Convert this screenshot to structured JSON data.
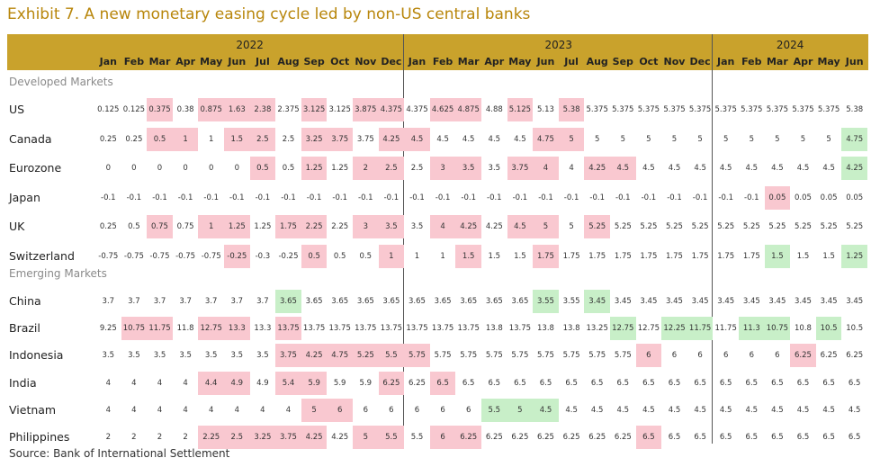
{
  "title": "Exhibit 7. A new monetary easing cycle led by non-US central banks",
  "table": {
    "years": [
      {
        "label": "2022",
        "months": [
          "Jan",
          "Feb",
          "Mar",
          "Apr",
          "May",
          "Jun",
          "Jul",
          "Aug",
          "Sep",
          "Oct",
          "Nov",
          "Dec"
        ]
      },
      {
        "label": "2023",
        "months": [
          "Jan",
          "Feb",
          "Mar",
          "Apr",
          "May",
          "Jun",
          "Jul",
          "Aug",
          "Sep",
          "Oct",
          "Nov",
          "Dec"
        ]
      },
      {
        "label": "2024",
        "months": [
          "Jan",
          "Feb",
          "Mar",
          "Apr",
          "May",
          "Jun"
        ]
      }
    ],
    "sections": [
      {
        "label": "Developed Markets",
        "rows": [
          {
            "name": "US",
            "values": [
              0.125,
              0.125,
              0.375,
              0.38,
              0.875,
              1.63,
              2.38,
              2.375,
              3.125,
              3.125,
              3.875,
              4.375,
              4.375,
              4.625,
              4.875,
              4.88,
              5.125,
              5.13,
              5.38,
              5.375,
              5.375,
              5.375,
              5.375,
              5.375,
              5.375,
              5.375,
              5.375,
              5.375,
              5.375,
              5.38
            ],
            "fills": [
              null,
              null,
              "#f9c8d0",
              null,
              "#f9c8d0",
              "#f9c8d0",
              "#f9c8d0",
              null,
              "#f9c8d0",
              null,
              "#f9c8d0",
              "#f9c8d0",
              null,
              "#f9c8d0",
              "#f9c8d0",
              null,
              "#f9c8d0",
              null,
              "#f9c8d0",
              null,
              null,
              null,
              null,
              null,
              null,
              null,
              null,
              null,
              null,
              null
            ]
          },
          {
            "name": "Canada",
            "values": [
              0.25,
              0.25,
              0.5,
              1,
              1,
              1.5,
              2.5,
              2.5,
              3.25,
              3.75,
              3.75,
              4.25,
              4.5,
              4.5,
              4.5,
              4.5,
              4.5,
              4.75,
              5,
              5,
              5,
              5,
              5,
              5,
              5,
              5,
              5,
              5,
              5,
              4.75
            ],
            "fills": [
              null,
              null,
              "#f9c8d0",
              "#f9c8d0",
              null,
              "#f9c8d0",
              "#f9c8d0",
              null,
              "#f9c8d0",
              "#f9c8d0",
              null,
              "#f9c8d0",
              "#f9c8d0",
              null,
              null,
              null,
              null,
              "#f9c8d0",
              "#f9c8d0",
              null,
              null,
              null,
              null,
              null,
              null,
              null,
              null,
              null,
              null,
              "#c8efc8"
            ]
          },
          {
            "name": "Eurozone",
            "values": [
              0,
              0,
              0,
              0,
              0,
              0,
              0.5,
              0.5,
              1.25,
              1.25,
              2,
              2.5,
              2.5,
              3,
              3.5,
              3.5,
              3.75,
              4,
              4,
              4.25,
              4.5,
              4.5,
              4.5,
              4.5,
              4.5,
              4.5,
              4.5,
              4.5,
              4.5,
              4.25
            ],
            "fills": [
              null,
              null,
              null,
              null,
              null,
              null,
              "#f9c8d0",
              null,
              "#f9c8d0",
              null,
              "#f9c8d0",
              "#f9c8d0",
              null,
              "#f9c8d0",
              "#f9c8d0",
              null,
              "#f9c8d0",
              "#f9c8d0",
              null,
              "#f9c8d0",
              "#f9c8d0",
              null,
              null,
              null,
              null,
              null,
              null,
              null,
              null,
              "#c8efc8"
            ]
          },
          {
            "name": "Japan",
            "values": [
              -0.1,
              -0.1,
              -0.1,
              -0.1,
              -0.1,
              -0.1,
              -0.1,
              -0.1,
              -0.1,
              -0.1,
              -0.1,
              -0.1,
              -0.1,
              -0.1,
              -0.1,
              -0.1,
              -0.1,
              -0.1,
              -0.1,
              -0.1,
              -0.1,
              -0.1,
              -0.1,
              -0.1,
              -0.1,
              -0.1,
              0.05,
              0.05,
              0.05,
              0.05
            ],
            "fills": [
              null,
              null,
              null,
              null,
              null,
              null,
              null,
              null,
              null,
              null,
              null,
              null,
              null,
              null,
              null,
              null,
              null,
              null,
              null,
              null,
              null,
              null,
              null,
              null,
              null,
              null,
              "#f9c8d0",
              null,
              null,
              null
            ]
          },
          {
            "name": "UK",
            "values": [
              0.25,
              0.5,
              0.75,
              0.75,
              1,
              1.25,
              1.25,
              1.75,
              2.25,
              2.25,
              3,
              3.5,
              3.5,
              4,
              4.25,
              4.25,
              4.5,
              5,
              5,
              5.25,
              5.25,
              5.25,
              5.25,
              5.25,
              5.25,
              5.25,
              5.25,
              5.25,
              5.25,
              5.25
            ],
            "fills": [
              null,
              null,
              "#f9c8d0",
              null,
              "#f9c8d0",
              "#f9c8d0",
              null,
              "#f9c8d0",
              "#f9c8d0",
              null,
              "#f9c8d0",
              "#f9c8d0",
              null,
              "#f9c8d0",
              "#f9c8d0",
              null,
              "#f9c8d0",
              "#f9c8d0",
              null,
              "#f9c8d0",
              null,
              null,
              null,
              null,
              null,
              null,
              null,
              null,
              null,
              null
            ]
          },
          {
            "name": "Switzerland",
            "values": [
              -0.75,
              -0.75,
              -0.75,
              -0.75,
              -0.75,
              -0.25,
              -0.3,
              -0.25,
              0.5,
              0.5,
              0.5,
              1,
              1,
              1,
              1.5,
              1.5,
              1.5,
              1.75,
              1.75,
              1.75,
              1.75,
              1.75,
              1.75,
              1.75,
              1.75,
              1.75,
              1.5,
              1.5,
              1.5,
              1.25
            ],
            "fills": [
              null,
              null,
              null,
              null,
              null,
              "#f9c8d0",
              null,
              null,
              "#f9c8d0",
              null,
              null,
              "#f9c8d0",
              null,
              null,
              "#f9c8d0",
              null,
              null,
              "#f9c8d0",
              null,
              null,
              null,
              null,
              null,
              null,
              null,
              null,
              "#c8efc8",
              null,
              null,
              "#c8efc8"
            ]
          }
        ]
      },
      {
        "label": "Emerging Markets",
        "rows": [
          {
            "name": "China",
            "values": [
              3.7,
              3.7,
              3.7,
              3.7,
              3.7,
              3.7,
              3.7,
              3.65,
              3.65,
              3.65,
              3.65,
              3.65,
              3.65,
              3.65,
              3.65,
              3.65,
              3.65,
              3.55,
              3.55,
              3.45,
              3.45,
              3.45,
              3.45,
              3.45,
              3.45,
              3.45,
              3.45,
              3.45,
              3.45,
              3.45
            ],
            "fills": [
              null,
              null,
              null,
              null,
              null,
              null,
              null,
              "#c8efc8",
              null,
              null,
              null,
              null,
              null,
              null,
              null,
              null,
              null,
              "#c8efc8",
              null,
              "#c8efc8",
              null,
              null,
              null,
              null,
              null,
              null,
              null,
              null,
              null,
              null
            ]
          },
          {
            "name": "Brazil",
            "values": [
              9.25,
              10.75,
              11.75,
              11.8,
              12.75,
              13.3,
              13.3,
              13.75,
              13.75,
              13.75,
              13.75,
              13.75,
              13.75,
              13.75,
              13.75,
              13.8,
              13.75,
              13.8,
              13.8,
              13.25,
              12.75,
              12.75,
              12.25,
              11.75,
              11.75,
              11.3,
              10.75,
              10.8,
              10.5,
              10.5
            ],
            "fills": [
              null,
              "#f9c8d0",
              "#f9c8d0",
              null,
              "#f9c8d0",
              "#f9c8d0",
              null,
              "#f9c8d0",
              null,
              null,
              null,
              null,
              null,
              null,
              null,
              null,
              null,
              null,
              null,
              null,
              "#c8efc8",
              null,
              "#c8efc8",
              "#c8efc8",
              null,
              "#c8efc8",
              "#c8efc8",
              null,
              "#c8efc8",
              null
            ]
          },
          {
            "name": "Indonesia",
            "values": [
              3.5,
              3.5,
              3.5,
              3.5,
              3.5,
              3.5,
              3.5,
              3.75,
              4.25,
              4.75,
              5.25,
              5.5,
              5.75,
              5.75,
              5.75,
              5.75,
              5.75,
              5.75,
              5.75,
              5.75,
              5.75,
              6,
              6,
              6,
              6,
              6,
              6,
              6.25,
              6.25,
              6.25
            ],
            "fills": [
              null,
              null,
              null,
              null,
              null,
              null,
              null,
              "#f9c8d0",
              "#f9c8d0",
              "#f9c8d0",
              "#f9c8d0",
              "#f9c8d0",
              "#f9c8d0",
              null,
              null,
              null,
              null,
              null,
              null,
              null,
              null,
              "#f9c8d0",
              null,
              null,
              null,
              null,
              null,
              "#f9c8d0",
              null,
              null
            ]
          },
          {
            "name": "India",
            "values": [
              4,
              4,
              4,
              4,
              4.4,
              4.9,
              4.9,
              5.4,
              5.9,
              5.9,
              5.9,
              6.25,
              6.25,
              6.5,
              6.5,
              6.5,
              6.5,
              6.5,
              6.5,
              6.5,
              6.5,
              6.5,
              6.5,
              6.5,
              6.5,
              6.5,
              6.5,
              6.5,
              6.5,
              6.5
            ],
            "fills": [
              null,
              null,
              null,
              null,
              "#f9c8d0",
              "#f9c8d0",
              null,
              "#f9c8d0",
              "#f9c8d0",
              null,
              null,
              "#f9c8d0",
              null,
              "#f9c8d0",
              null,
              null,
              null,
              null,
              null,
              null,
              null,
              null,
              null,
              null,
              null,
              null,
              null,
              null,
              null,
              null
            ]
          },
          {
            "name": "Vietnam",
            "values": [
              4,
              4,
              4,
              4,
              4,
              4,
              4,
              4,
              5,
              6,
              6,
              6,
              6,
              6,
              6,
              5.5,
              5,
              4.5,
              4.5,
              4.5,
              4.5,
              4.5,
              4.5,
              4.5,
              4.5,
              4.5,
              4.5,
              4.5,
              4.5,
              4.5
            ],
            "fills": [
              null,
              null,
              null,
              null,
              null,
              null,
              null,
              null,
              "#f9c8d0",
              "#f9c8d0",
              null,
              null,
              null,
              null,
              null,
              "#c8efc8",
              "#c8efc8",
              "#c8efc8",
              null,
              null,
              null,
              null,
              null,
              null,
              null,
              null,
              null,
              null,
              null,
              null
            ]
          },
          {
            "name": "Philippines",
            "values": [
              2,
              2,
              2,
              2,
              2.25,
              2.5,
              3.25,
              3.75,
              4.25,
              4.25,
              5,
              5.5,
              5.5,
              6,
              6.25,
              6.25,
              6.25,
              6.25,
              6.25,
              6.25,
              6.25,
              6.5,
              6.5,
              6.5,
              6.5,
              6.5,
              6.5,
              6.5,
              6.5,
              6.5
            ],
            "fills": [
              null,
              null,
              null,
              null,
              "#f9c8d0",
              "#f9c8d0",
              "#f9c8d0",
              "#f9c8d0",
              "#f9c8d0",
              null,
              "#f9c8d0",
              "#f9c8d0",
              null,
              "#f9c8d0",
              "#f9c8d0",
              null,
              null,
              null,
              null,
              null,
              null,
              "#f9c8d0",
              null,
              null,
              null,
              null,
              null,
              null,
              null,
              null
            ]
          }
        ]
      }
    ]
  },
  "source": "Source: Bank of International Settlement"
}
